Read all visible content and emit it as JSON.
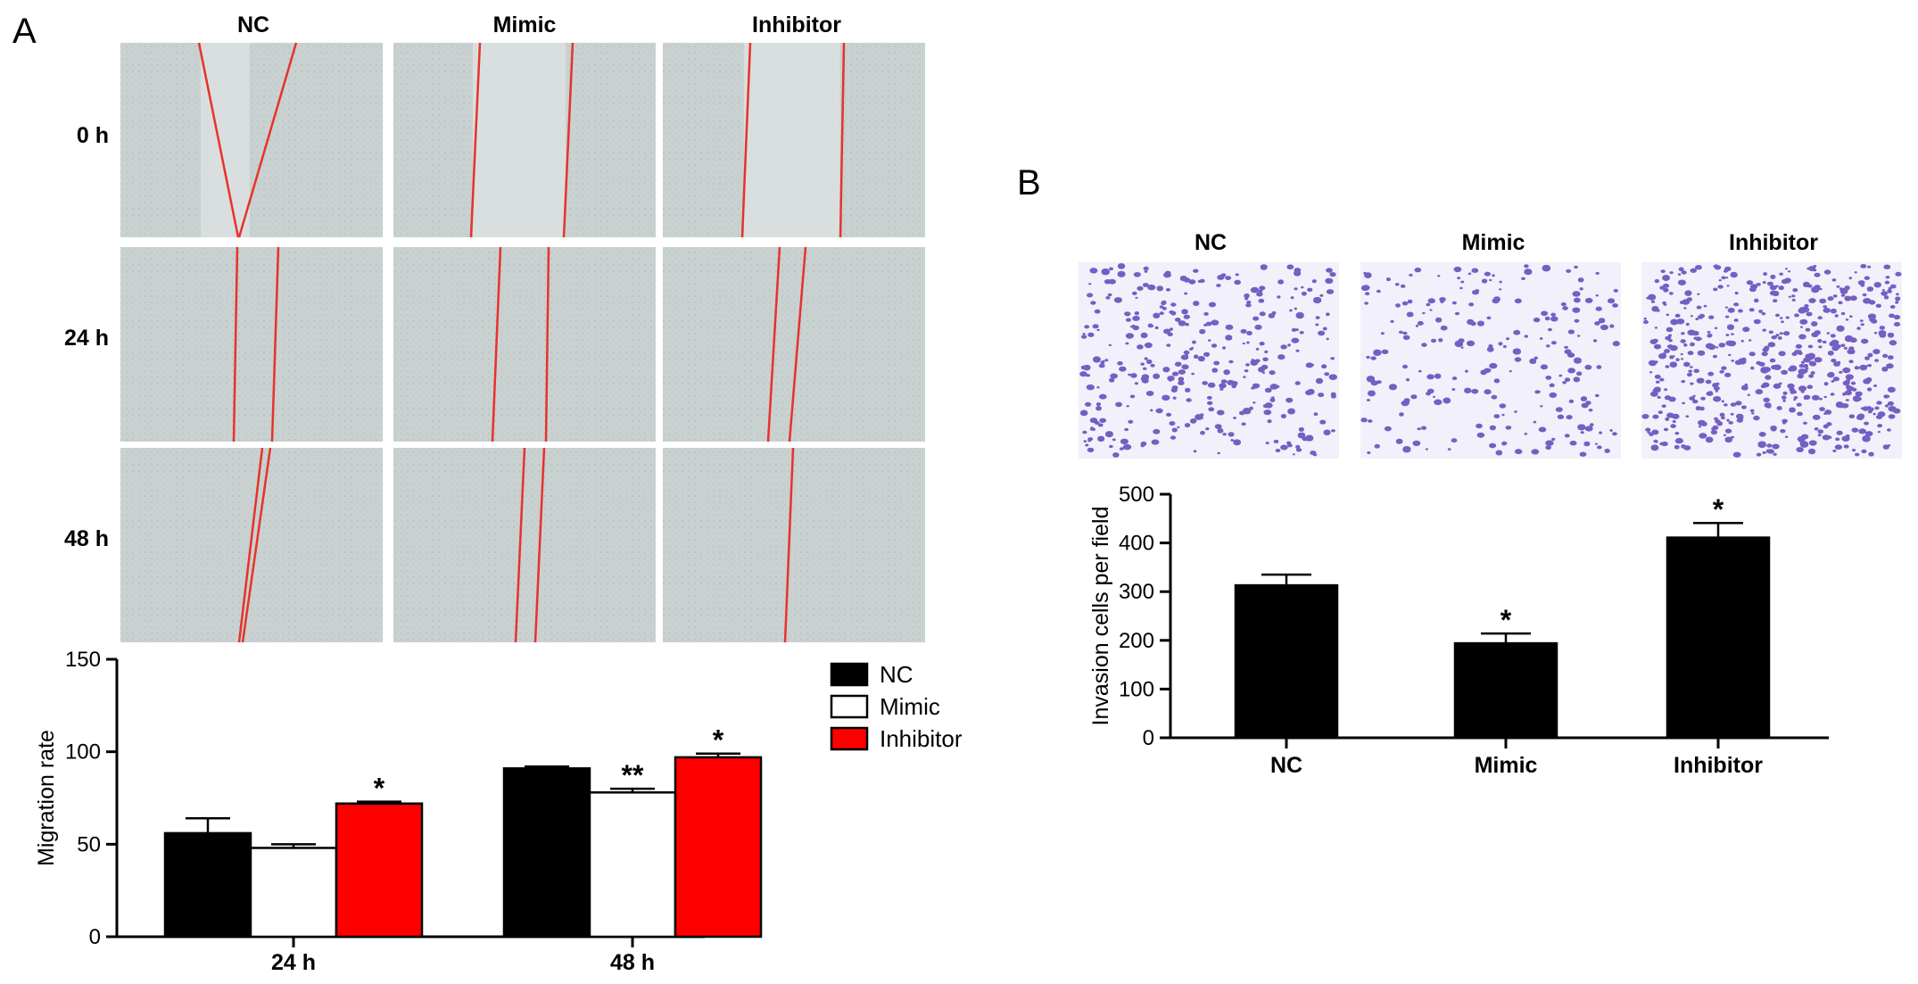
{
  "panel_a": {
    "letter": "A",
    "columns": [
      "NC",
      "Mimic",
      "Inhibitor"
    ],
    "rows": [
      "0 h",
      "24 h",
      "48 h"
    ],
    "micrograph_background": "#c9d1d1",
    "scratch_line_color": "#e8322a"
  },
  "panel_b": {
    "letter": "B",
    "columns": [
      "NC",
      "Mimic",
      "Inhibitor"
    ],
    "micrograph_background": "#f2f0fa",
    "stain_color": "#4a2fb0"
  },
  "chart_data": [
    {
      "type": "bar",
      "categories": [
        "24 h",
        "48 h"
      ],
      "series": [
        {
          "name": "NC",
          "values": [
            56,
            91
          ],
          "errors": [
            8,
            1
          ],
          "color": "#000000",
          "significance": [
            "",
            ""
          ]
        },
        {
          "name": "Mimic",
          "values": [
            48,
            78
          ],
          "errors": [
            2,
            2
          ],
          "color": "#ffffff",
          "significance": [
            "",
            "**"
          ]
        },
        {
          "name": "Inhibitor",
          "values": [
            72,
            97
          ],
          "errors": [
            1,
            2
          ],
          "color": "#ff0000",
          "significance": [
            "*",
            "*"
          ]
        }
      ],
      "ylabel": "Migration rate",
      "xlabel": "",
      "ylim": [
        0,
        150
      ],
      "yticks": [
        0,
        50,
        100,
        150
      ],
      "legend": "top-right",
      "grid": false
    },
    {
      "type": "bar",
      "categories": [
        "NC",
        "Mimic",
        "Inhibitor"
      ],
      "values": [
        313,
        194,
        411
      ],
      "errors": [
        22,
        20,
        30
      ],
      "significance": [
        "",
        "*",
        "*"
      ],
      "color": "#000000",
      "ylabel": "Invasion cells per field",
      "xlabel": "",
      "ylim": [
        0,
        500
      ],
      "yticks": [
        0,
        100,
        200,
        300,
        400,
        500
      ],
      "grid": false
    }
  ]
}
